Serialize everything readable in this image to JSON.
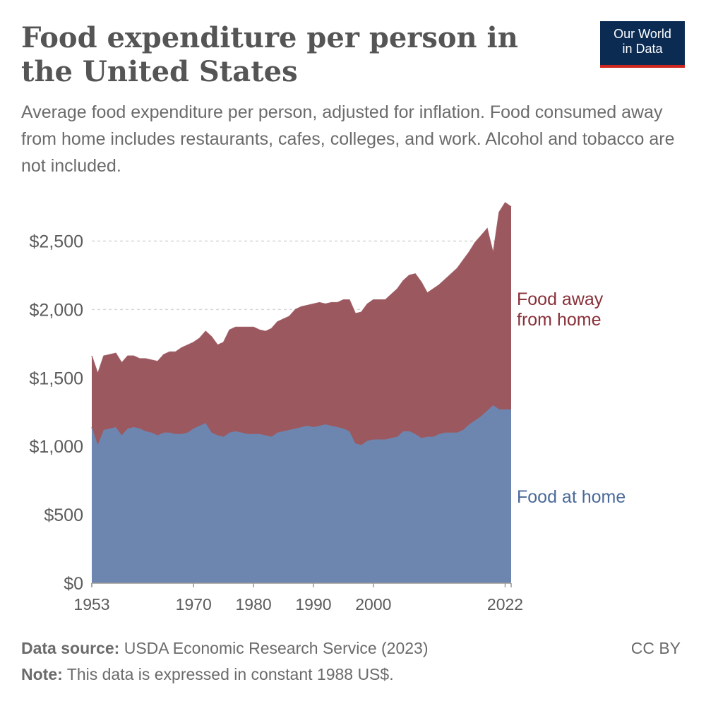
{
  "header": {
    "title": "Food expenditure per person in the United States",
    "subtitle": "Average food expenditure per person, adjusted for inflation. Food consumed away from home includes restaurants, cafes, colleges, and work. Alcohol and tobacco are not included."
  },
  "logo": {
    "line1": "Our World",
    "line2": "in Data",
    "bg_color": "#0b2b53",
    "accent_color": "#ce261e"
  },
  "footer": {
    "source_label": "Data source:",
    "source_text": "USDA Economic Research Service (2023)",
    "note_label": "Note:",
    "note_text": "This data is expressed in constant 1988 US$.",
    "license": "CC BY"
  },
  "chart_data": {
    "type": "area",
    "stacked": true,
    "xlim": [
      1953,
      2023
    ],
    "ylim": [
      0,
      2750
    ],
    "y_ticks": [
      0,
      500,
      1000,
      1500,
      2000,
      2500
    ],
    "y_tick_labels": [
      "$0",
      "$500",
      "$1,000",
      "$1,500",
      "$2,000",
      "$2,500"
    ],
    "x_ticks": [
      1953,
      1970,
      1980,
      1990,
      2000,
      2022
    ],
    "x_tick_labels": [
      "1953",
      "1970",
      "1980",
      "1990",
      "2000",
      "2022"
    ],
    "grid": "horizontal-dashed",
    "x": [
      1953,
      1954,
      1955,
      1956,
      1957,
      1958,
      1959,
      1960,
      1961,
      1962,
      1963,
      1964,
      1965,
      1966,
      1967,
      1968,
      1969,
      1970,
      1971,
      1972,
      1973,
      1974,
      1975,
      1976,
      1977,
      1978,
      1979,
      1980,
      1981,
      1982,
      1983,
      1984,
      1985,
      1986,
      1987,
      1988,
      1989,
      1990,
      1991,
      1992,
      1993,
      1994,
      1995,
      1996,
      1997,
      1998,
      1999,
      2000,
      2001,
      2002,
      2003,
      2004,
      2005,
      2006,
      2007,
      2008,
      2009,
      2010,
      2011,
      2012,
      2013,
      2014,
      2015,
      2016,
      2017,
      2018,
      2019,
      2020,
      2021,
      2022,
      2023
    ],
    "series": [
      {
        "name": "Food at home",
        "color": "#6d86b0",
        "label_color": "#4a6a9a",
        "values": [
          1140,
          1010,
          1120,
          1130,
          1140,
          1080,
          1130,
          1140,
          1130,
          1110,
          1100,
          1080,
          1100,
          1100,
          1090,
          1090,
          1100,
          1130,
          1150,
          1170,
          1100,
          1080,
          1070,
          1100,
          1110,
          1100,
          1090,
          1090,
          1090,
          1080,
          1070,
          1100,
          1110,
          1120,
          1130,
          1140,
          1150,
          1140,
          1150,
          1160,
          1150,
          1140,
          1130,
          1110,
          1020,
          1010,
          1040,
          1050,
          1050,
          1050,
          1060,
          1070,
          1110,
          1110,
          1090,
          1060,
          1070,
          1070,
          1090,
          1100,
          1100,
          1100,
          1120,
          1160,
          1190,
          1220,
          1260,
          1300,
          1270,
          1270,
          1270
        ]
      },
      {
        "name": "Food away from home",
        "color": "#9b585f",
        "label_color": "#883039",
        "values": [
          520,
          520,
          540,
          540,
          540,
          530,
          530,
          520,
          510,
          530,
          530,
          540,
          570,
          590,
          600,
          630,
          640,
          630,
          640,
          670,
          700,
          660,
          690,
          750,
          760,
          770,
          780,
          780,
          760,
          760,
          790,
          810,
          820,
          830,
          870,
          880,
          880,
          900,
          900,
          880,
          900,
          910,
          940,
          960,
          950,
          970,
          1000,
          1020,
          1020,
          1020,
          1050,
          1080,
          1100,
          1140,
          1170,
          1140,
          1050,
          1080,
          1090,
          1120,
          1160,
          1200,
          1240,
          1260,
          1300,
          1320,
          1330,
          1110,
          1440,
          1510,
          1480
        ]
      }
    ]
  }
}
